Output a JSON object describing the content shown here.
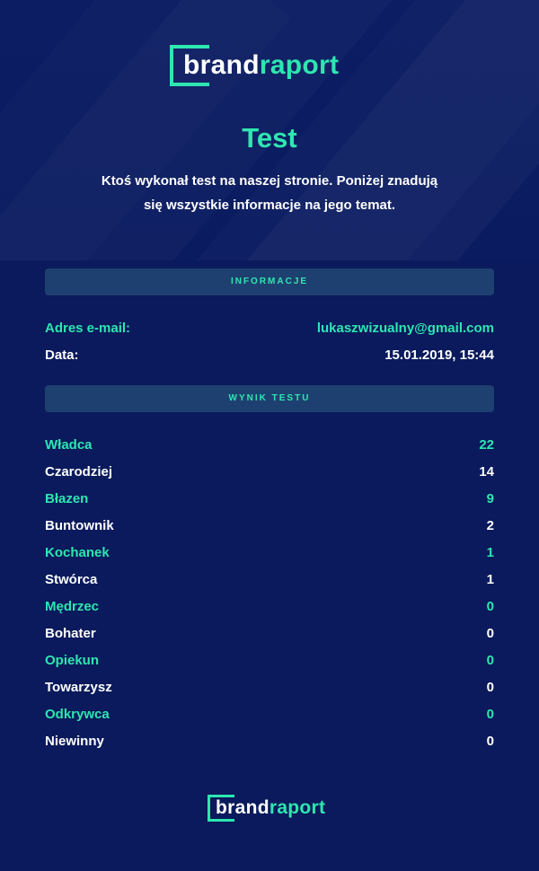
{
  "brand": {
    "part1": "brand",
    "part2": "raport"
  },
  "header": {
    "title": "Test",
    "intro_line1": "Ktoś wykonał test na naszej stronie. Poniżej znadują",
    "intro_line2": "się wszystkie informacje na jego temat."
  },
  "info": {
    "section_label": "INFORMACJE",
    "email_label": "Adres e-mail:",
    "email_value": "lukaszwizualny@gmail.com",
    "date_label": "Data:",
    "date_value": "15.01.2019, 15:44"
  },
  "result": {
    "section_label": "WYNIK TESTU",
    "rows": [
      {
        "label": "Władca",
        "value": "22"
      },
      {
        "label": "Czarodziej",
        "value": "14"
      },
      {
        "label": "Błazen",
        "value": "9"
      },
      {
        "label": "Buntownik",
        "value": "2"
      },
      {
        "label": "Kochanek",
        "value": "1"
      },
      {
        "label": "Stwórca",
        "value": "1"
      },
      {
        "label": "Mędrzec",
        "value": "0"
      },
      {
        "label": "Bohater",
        "value": "0"
      },
      {
        "label": "Opiekun",
        "value": "0"
      },
      {
        "label": "Towarzysz",
        "value": "0"
      },
      {
        "label": "Odkrywca",
        "value": "0"
      },
      {
        "label": "Niewinny",
        "value": "0"
      }
    ]
  },
  "colors": {
    "background": "#0a1a5c",
    "accent": "#2ee6b0",
    "section_bg": "#1e4070",
    "text": "#ffffff"
  }
}
